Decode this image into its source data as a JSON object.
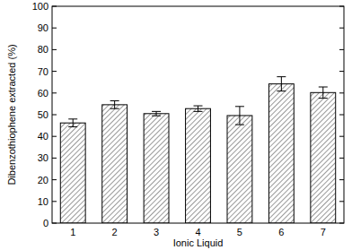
{
  "chart_data": {
    "type": "bar",
    "x_label": "Ionic Liquid",
    "y_label": "Dibenzothiophene extracted (%)",
    "categories": [
      "1",
      "2",
      "3",
      "4",
      "5",
      "6",
      "7"
    ],
    "values": [
      46.2,
      54.6,
      50.5,
      52.8,
      49.6,
      64.2,
      60.2
    ],
    "errors": [
      1.8,
      1.8,
      1.0,
      1.3,
      4.2,
      3.3,
      2.6
    ],
    "color": "#000000",
    "ylim": [
      0,
      100
    ],
    "yticks": [
      0,
      10,
      20,
      30,
      40,
      50,
      60,
      70,
      80,
      90,
      100
    ],
    "grid": false
  }
}
